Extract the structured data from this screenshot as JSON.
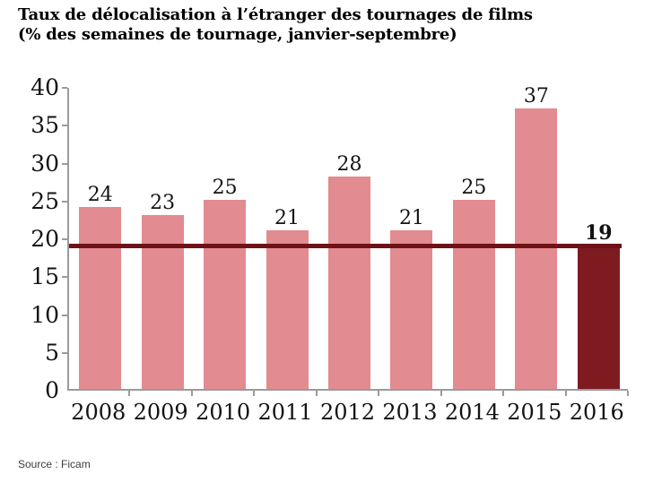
{
  "title": {
    "line1": "Taux de délocalisation à l’étranger des tournages de films",
    "line2": "(% des semaines de tournage, janvier-septembre)"
  },
  "source": "Source : Ficam",
  "chart_data": {
    "type": "bar",
    "title": "Taux de délocalisation à l’étranger des tournages de films (% des semaines de tournage, janvier-septembre)",
    "categories": [
      "2008",
      "2009",
      "2010",
      "2011",
      "2012",
      "2013",
      "2014",
      "2015",
      "2016"
    ],
    "values": [
      24,
      23,
      25,
      21,
      28,
      21,
      25,
      37,
      19
    ],
    "highlight_index": 8,
    "reference_line": {
      "value": 19
    },
    "ylim": [
      0,
      40
    ],
    "yticks": [
      0,
      5,
      10,
      15,
      20,
      25,
      30,
      35,
      40
    ],
    "xlabel": "",
    "ylabel": "",
    "grid": false,
    "legend_position": "none",
    "colors": {
      "bar": "#e28b90",
      "highlight_bar": "#7e1b21",
      "reference_line": "#6e1218",
      "axis": "#9b9b9b",
      "label": "#131313"
    }
  }
}
